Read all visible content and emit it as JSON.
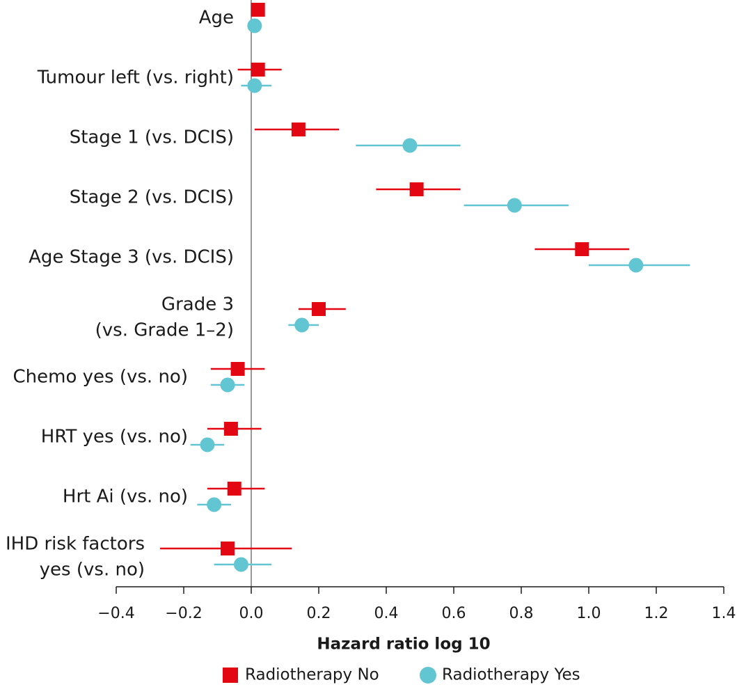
{
  "chart_data": {
    "type": "forest",
    "xlabel": "Hazard ratio log 10",
    "categories": [
      "Age",
      "Tumour left (vs. right)",
      "Stage 1 (vs. DCIS)",
      "Stage 2 (vs. DCIS)",
      "Age Stage 3 (vs. DCIS)",
      [
        "Grade 3",
        "(vs. Grade 1–2)"
      ],
      "Chemo yes (vs. no)",
      "HRT yes (vs. no)",
      "Hrt Ai (vs. no)",
      [
        "IHD risk factors",
        "yes (vs. no)"
      ]
    ],
    "series": [
      {
        "name": "Radiotherapy No",
        "color": "#e30613",
        "marker": "square",
        "values": [
          0.02,
          0.02,
          0.14,
          0.49,
          0.98,
          0.2,
          -0.04,
          -0.06,
          -0.05,
          -0.07
        ],
        "lower": [
          null,
          -0.04,
          0.01,
          0.37,
          0.84,
          0.14,
          -0.12,
          -0.13,
          -0.13,
          -0.27
        ],
        "upper": [
          null,
          0.09,
          0.26,
          0.62,
          1.12,
          0.28,
          0.04,
          0.03,
          0.04,
          0.12
        ]
      },
      {
        "name": "Radiotherapy Yes",
        "color": "#62c6d2",
        "marker": "circle",
        "values": [
          0.01,
          0.01,
          0.47,
          0.78,
          1.14,
          0.15,
          -0.07,
          -0.13,
          -0.11,
          -0.03
        ],
        "lower": [
          null,
          -0.03,
          0.31,
          0.63,
          1.0,
          0.11,
          -0.12,
          -0.18,
          -0.16,
          -0.11
        ],
        "upper": [
          null,
          0.06,
          0.62,
          0.94,
          1.3,
          0.2,
          -0.02,
          -0.08,
          -0.06,
          0.06
        ]
      }
    ],
    "xlim": [
      -0.4,
      1.4
    ],
    "xticks": [
      {
        "value": -0.4,
        "label": "−0.4"
      },
      {
        "value": -0.2,
        "label": "−0.2"
      },
      {
        "value": 0,
        "label": "0.0"
      },
      0.2,
      0.4,
      0.6,
      0.8,
      {
        "value": 1,
        "label": "1.0"
      },
      1.2,
      1.4
    ],
    "reference_line": 0
  }
}
